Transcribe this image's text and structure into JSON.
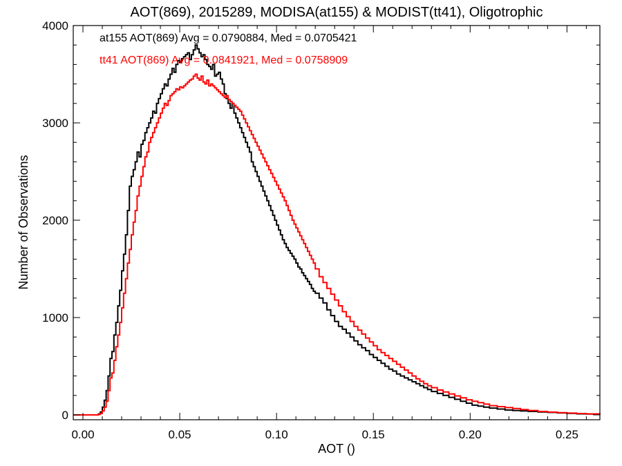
{
  "chart_data": {
    "type": "line",
    "title": "AOT(869), 2015289, MODISA(at155) & MODIST(tt41), Oligotrophic",
    "xlabel": "AOT ()",
    "ylabel": "Number of Observations",
    "xlim": [
      -0.005,
      0.267
    ],
    "ylim": [
      -50,
      4000
    ],
    "x_ticks": [
      0.0,
      0.05,
      0.1,
      0.15,
      0.2,
      0.25
    ],
    "x_tick_labels": [
      "0.00",
      "0.05",
      "0.10",
      "0.15",
      "0.20",
      "0.25"
    ],
    "y_ticks": [
      0,
      1000,
      2000,
      3000,
      4000
    ],
    "y_tick_labels": [
      "0",
      "1000",
      "2000",
      "3000",
      "4000"
    ],
    "grid": false,
    "legend_position": "top-left",
    "annotations": [
      {
        "text": "at155 AOT(869) Avg = 0.0790884, Med = 0.0705421",
        "color": "#000000"
      },
      {
        "text": "tt41 AOT(869) Avg = 0.0841921, Med = 0.0758909",
        "color": "#ff0000"
      }
    ],
    "series": [
      {
        "name": "at155",
        "color": "#000000",
        "x": [
          -0.005,
          0.0,
          0.005,
          0.008,
          0.009,
          0.01,
          0.011,
          0.012,
          0.013,
          0.014,
          0.015,
          0.016,
          0.017,
          0.018,
          0.019,
          0.02,
          0.021,
          0.022,
          0.023,
          0.024,
          0.025,
          0.026,
          0.027,
          0.028,
          0.029,
          0.03,
          0.031,
          0.032,
          0.033,
          0.034,
          0.035,
          0.036,
          0.037,
          0.038,
          0.039,
          0.04,
          0.041,
          0.042,
          0.043,
          0.044,
          0.045,
          0.046,
          0.047,
          0.048,
          0.049,
          0.05,
          0.051,
          0.052,
          0.053,
          0.054,
          0.055,
          0.056,
          0.057,
          0.058,
          0.059,
          0.06,
          0.061,
          0.062,
          0.063,
          0.064,
          0.065,
          0.066,
          0.067,
          0.068,
          0.069,
          0.07,
          0.071,
          0.072,
          0.073,
          0.074,
          0.075,
          0.076,
          0.077,
          0.078,
          0.079,
          0.08,
          0.081,
          0.082,
          0.083,
          0.084,
          0.085,
          0.086,
          0.087,
          0.088,
          0.089,
          0.09,
          0.091,
          0.092,
          0.093,
          0.094,
          0.095,
          0.096,
          0.097,
          0.098,
          0.099,
          0.1,
          0.101,
          0.102,
          0.103,
          0.104,
          0.105,
          0.106,
          0.107,
          0.108,
          0.109,
          0.11,
          0.111,
          0.112,
          0.113,
          0.114,
          0.115,
          0.116,
          0.117,
          0.118,
          0.119,
          0.12,
          0.122,
          0.124,
          0.126,
          0.128,
          0.13,
          0.132,
          0.134,
          0.136,
          0.138,
          0.14,
          0.142,
          0.144,
          0.146,
          0.148,
          0.15,
          0.152,
          0.154,
          0.156,
          0.158,
          0.16,
          0.162,
          0.164,
          0.166,
          0.168,
          0.17,
          0.172,
          0.174,
          0.176,
          0.178,
          0.18,
          0.183,
          0.186,
          0.189,
          0.192,
          0.195,
          0.198,
          0.201,
          0.204,
          0.207,
          0.21,
          0.214,
          0.218,
          0.222,
          0.226,
          0.23,
          0.235,
          0.24,
          0.245,
          0.25,
          0.255,
          0.26,
          0.267
        ],
        "values": [
          0,
          0,
          0,
          10,
          30,
          80,
          150,
          250,
          400,
          580,
          650,
          820,
          950,
          1120,
          1280,
          1480,
          1650,
          1850,
          2100,
          2350,
          2450,
          2520,
          2600,
          2700,
          2650,
          2780,
          2820,
          2900,
          2950,
          3000,
          3050,
          3120,
          3100,
          3200,
          3250,
          3300,
          3350,
          3400,
          3380,
          3450,
          3500,
          3560,
          3520,
          3600,
          3640,
          3620,
          3660,
          3680,
          3700,
          3720,
          3650,
          3700,
          3750,
          3800,
          3760,
          3720,
          3680,
          3700,
          3650,
          3600,
          3580,
          3550,
          3600,
          3480,
          3500,
          3520,
          3450,
          3400,
          3300,
          3250,
          3200,
          3150,
          3200,
          3100,
          3050,
          3000,
          2950,
          2900,
          2850,
          2800,
          2750,
          2700,
          2600,
          2550,
          2500,
          2450,
          2400,
          2350,
          2300,
          2250,
          2200,
          2150,
          2100,
          2050,
          2000,
          1950,
          1900,
          1850,
          1800,
          1760,
          1720,
          1690,
          1660,
          1630,
          1600,
          1560,
          1520,
          1500,
          1460,
          1430,
          1400,
          1370,
          1340,
          1300,
          1270,
          1250,
          1200,
          1150,
          1080,
          1020,
          960,
          910,
          880,
          840,
          800,
          760,
          720,
          690,
          660,
          620,
          590,
          560,
          530,
          500,
          470,
          450,
          420,
          400,
          380,
          360,
          340,
          320,
          300,
          280,
          260,
          240,
          220,
          200,
          180,
          160,
          140,
          120,
          100,
          90,
          80,
          70,
          60,
          50,
          45,
          40,
          35,
          30,
          25,
          20,
          15,
          10,
          8,
          5
        ]
      },
      {
        "name": "tt41",
        "color": "#ff0000",
        "x": [
          -0.005,
          0.0,
          0.005,
          0.008,
          0.009,
          0.01,
          0.011,
          0.012,
          0.013,
          0.014,
          0.015,
          0.016,
          0.017,
          0.018,
          0.019,
          0.02,
          0.021,
          0.022,
          0.023,
          0.024,
          0.025,
          0.026,
          0.027,
          0.028,
          0.029,
          0.03,
          0.031,
          0.032,
          0.033,
          0.034,
          0.035,
          0.036,
          0.037,
          0.038,
          0.039,
          0.04,
          0.041,
          0.042,
          0.043,
          0.044,
          0.045,
          0.046,
          0.047,
          0.048,
          0.049,
          0.05,
          0.051,
          0.052,
          0.053,
          0.054,
          0.055,
          0.056,
          0.057,
          0.058,
          0.059,
          0.06,
          0.061,
          0.062,
          0.063,
          0.064,
          0.065,
          0.066,
          0.067,
          0.068,
          0.069,
          0.07,
          0.071,
          0.072,
          0.073,
          0.074,
          0.075,
          0.076,
          0.077,
          0.078,
          0.079,
          0.08,
          0.081,
          0.082,
          0.083,
          0.084,
          0.085,
          0.086,
          0.087,
          0.088,
          0.089,
          0.09,
          0.091,
          0.092,
          0.093,
          0.094,
          0.095,
          0.096,
          0.097,
          0.098,
          0.099,
          0.1,
          0.101,
          0.102,
          0.103,
          0.104,
          0.105,
          0.106,
          0.107,
          0.108,
          0.109,
          0.11,
          0.111,
          0.112,
          0.113,
          0.114,
          0.115,
          0.116,
          0.117,
          0.118,
          0.119,
          0.12,
          0.122,
          0.124,
          0.126,
          0.128,
          0.13,
          0.132,
          0.134,
          0.136,
          0.138,
          0.14,
          0.142,
          0.144,
          0.146,
          0.148,
          0.15,
          0.152,
          0.154,
          0.156,
          0.158,
          0.16,
          0.162,
          0.164,
          0.166,
          0.168,
          0.17,
          0.172,
          0.174,
          0.176,
          0.178,
          0.18,
          0.183,
          0.186,
          0.189,
          0.192,
          0.195,
          0.198,
          0.201,
          0.204,
          0.207,
          0.21,
          0.214,
          0.218,
          0.222,
          0.226,
          0.23,
          0.235,
          0.24,
          0.245,
          0.25,
          0.255,
          0.26,
          0.267
        ],
        "values": [
          0,
          0,
          0,
          5,
          15,
          40,
          80,
          140,
          250,
          380,
          430,
          560,
          700,
          820,
          950,
          1100,
          1250,
          1400,
          1560,
          1700,
          1850,
          1980,
          2100,
          2250,
          2350,
          2450,
          2550,
          2650,
          2700,
          2800,
          2850,
          2900,
          2950,
          3000,
          3050,
          3100,
          3150,
          3200,
          3180,
          3230,
          3280,
          3300,
          3320,
          3350,
          3340,
          3370,
          3360,
          3380,
          3400,
          3420,
          3440,
          3450,
          3480,
          3500,
          3460,
          3440,
          3480,
          3420,
          3400,
          3440,
          3380,
          3400,
          3380,
          3360,
          3340,
          3320,
          3300,
          3280,
          3260,
          3280,
          3240,
          3220,
          3200,
          3180,
          3160,
          3140,
          3120,
          3080,
          3040,
          3000,
          2960,
          2920,
          2880,
          2840,
          2800,
          2760,
          2720,
          2680,
          2640,
          2600,
          2560,
          2520,
          2480,
          2440,
          2400,
          2360,
          2320,
          2280,
          2240,
          2200,
          2150,
          2100,
          2050,
          2000,
          1960,
          1920,
          1880,
          1840,
          1800,
          1760,
          1720,
          1680,
          1640,
          1600,
          1560,
          1500,
          1420,
          1360,
          1300,
          1240,
          1180,
          1120,
          1060,
          1010,
          960,
          910,
          870,
          830,
          790,
          750,
          710,
          670,
          640,
          610,
          580,
          550,
          520,
          490,
          460,
          430,
          400,
          370,
          345,
          320,
          300,
          280,
          255,
          235,
          215,
          195,
          175,
          155,
          140,
          125,
          110,
          95,
          85,
          75,
          65,
          55,
          45,
          35,
          28,
          22,
          18,
          14,
          10,
          6
        ]
      }
    ]
  }
}
